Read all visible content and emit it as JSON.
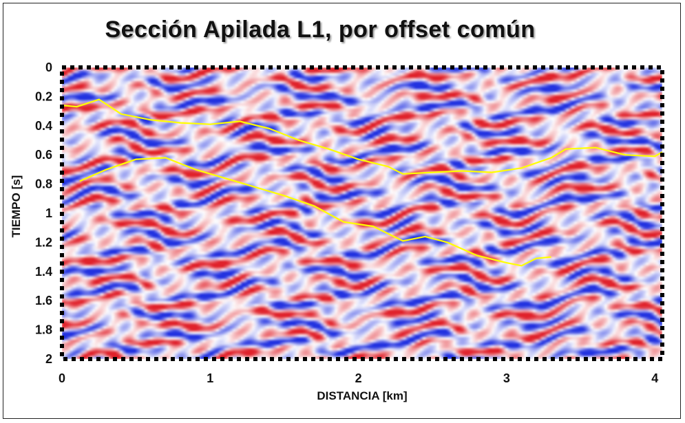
{
  "chart_data": {
    "type": "heatmap",
    "title": "Sección Apilada L1, por offset común",
    "xlabel": "DISTANCIA [km]",
    "ylabel": "TIEMPO [s]",
    "xlim": [
      0,
      4.05
    ],
    "ylim": [
      0,
      2
    ],
    "y_inverted": true,
    "x_ticks": [
      "0",
      "1",
      "2",
      "3",
      "4"
    ],
    "y_ticks": [
      "0",
      "0.2",
      "0.4",
      "0.6",
      "0.8",
      "1",
      "1.2",
      "1.4",
      "1.6",
      "1.8",
      "2"
    ],
    "colormap": {
      "positive": "#e0202a",
      "zero": "#ffffff",
      "negative": "#2030e0"
    },
    "grid": false,
    "series": [
      {
        "color": "#ffff00",
        "x": [
          0.0,
          0.1,
          0.25,
          0.4,
          0.6,
          0.8,
          1.0,
          1.2,
          1.4,
          1.6,
          1.8,
          2.0,
          2.2,
          2.3,
          2.5,
          2.7,
          2.9,
          3.1,
          3.3,
          3.4,
          3.6,
          3.8,
          4.0,
          4.05
        ],
        "y": [
          0.26,
          0.27,
          0.22,
          0.32,
          0.36,
          0.38,
          0.39,
          0.37,
          0.42,
          0.5,
          0.56,
          0.63,
          0.68,
          0.73,
          0.72,
          0.71,
          0.72,
          0.69,
          0.62,
          0.56,
          0.55,
          0.6,
          0.61,
          0.58
        ]
      },
      {
        "color": "#ffff00",
        "x": [
          0.12,
          0.3,
          0.5,
          0.7,
          0.9,
          1.1,
          1.3,
          1.5,
          1.7,
          1.9,
          2.1,
          2.3,
          2.45,
          2.6,
          2.8,
          3.0,
          3.1,
          3.2,
          3.3
        ],
        "y": [
          0.78,
          0.7,
          0.63,
          0.62,
          0.7,
          0.76,
          0.82,
          0.88,
          0.95,
          1.06,
          1.09,
          1.19,
          1.16,
          1.2,
          1.29,
          1.34,
          1.36,
          1.31,
          1.3
        ]
      }
    ]
  }
}
